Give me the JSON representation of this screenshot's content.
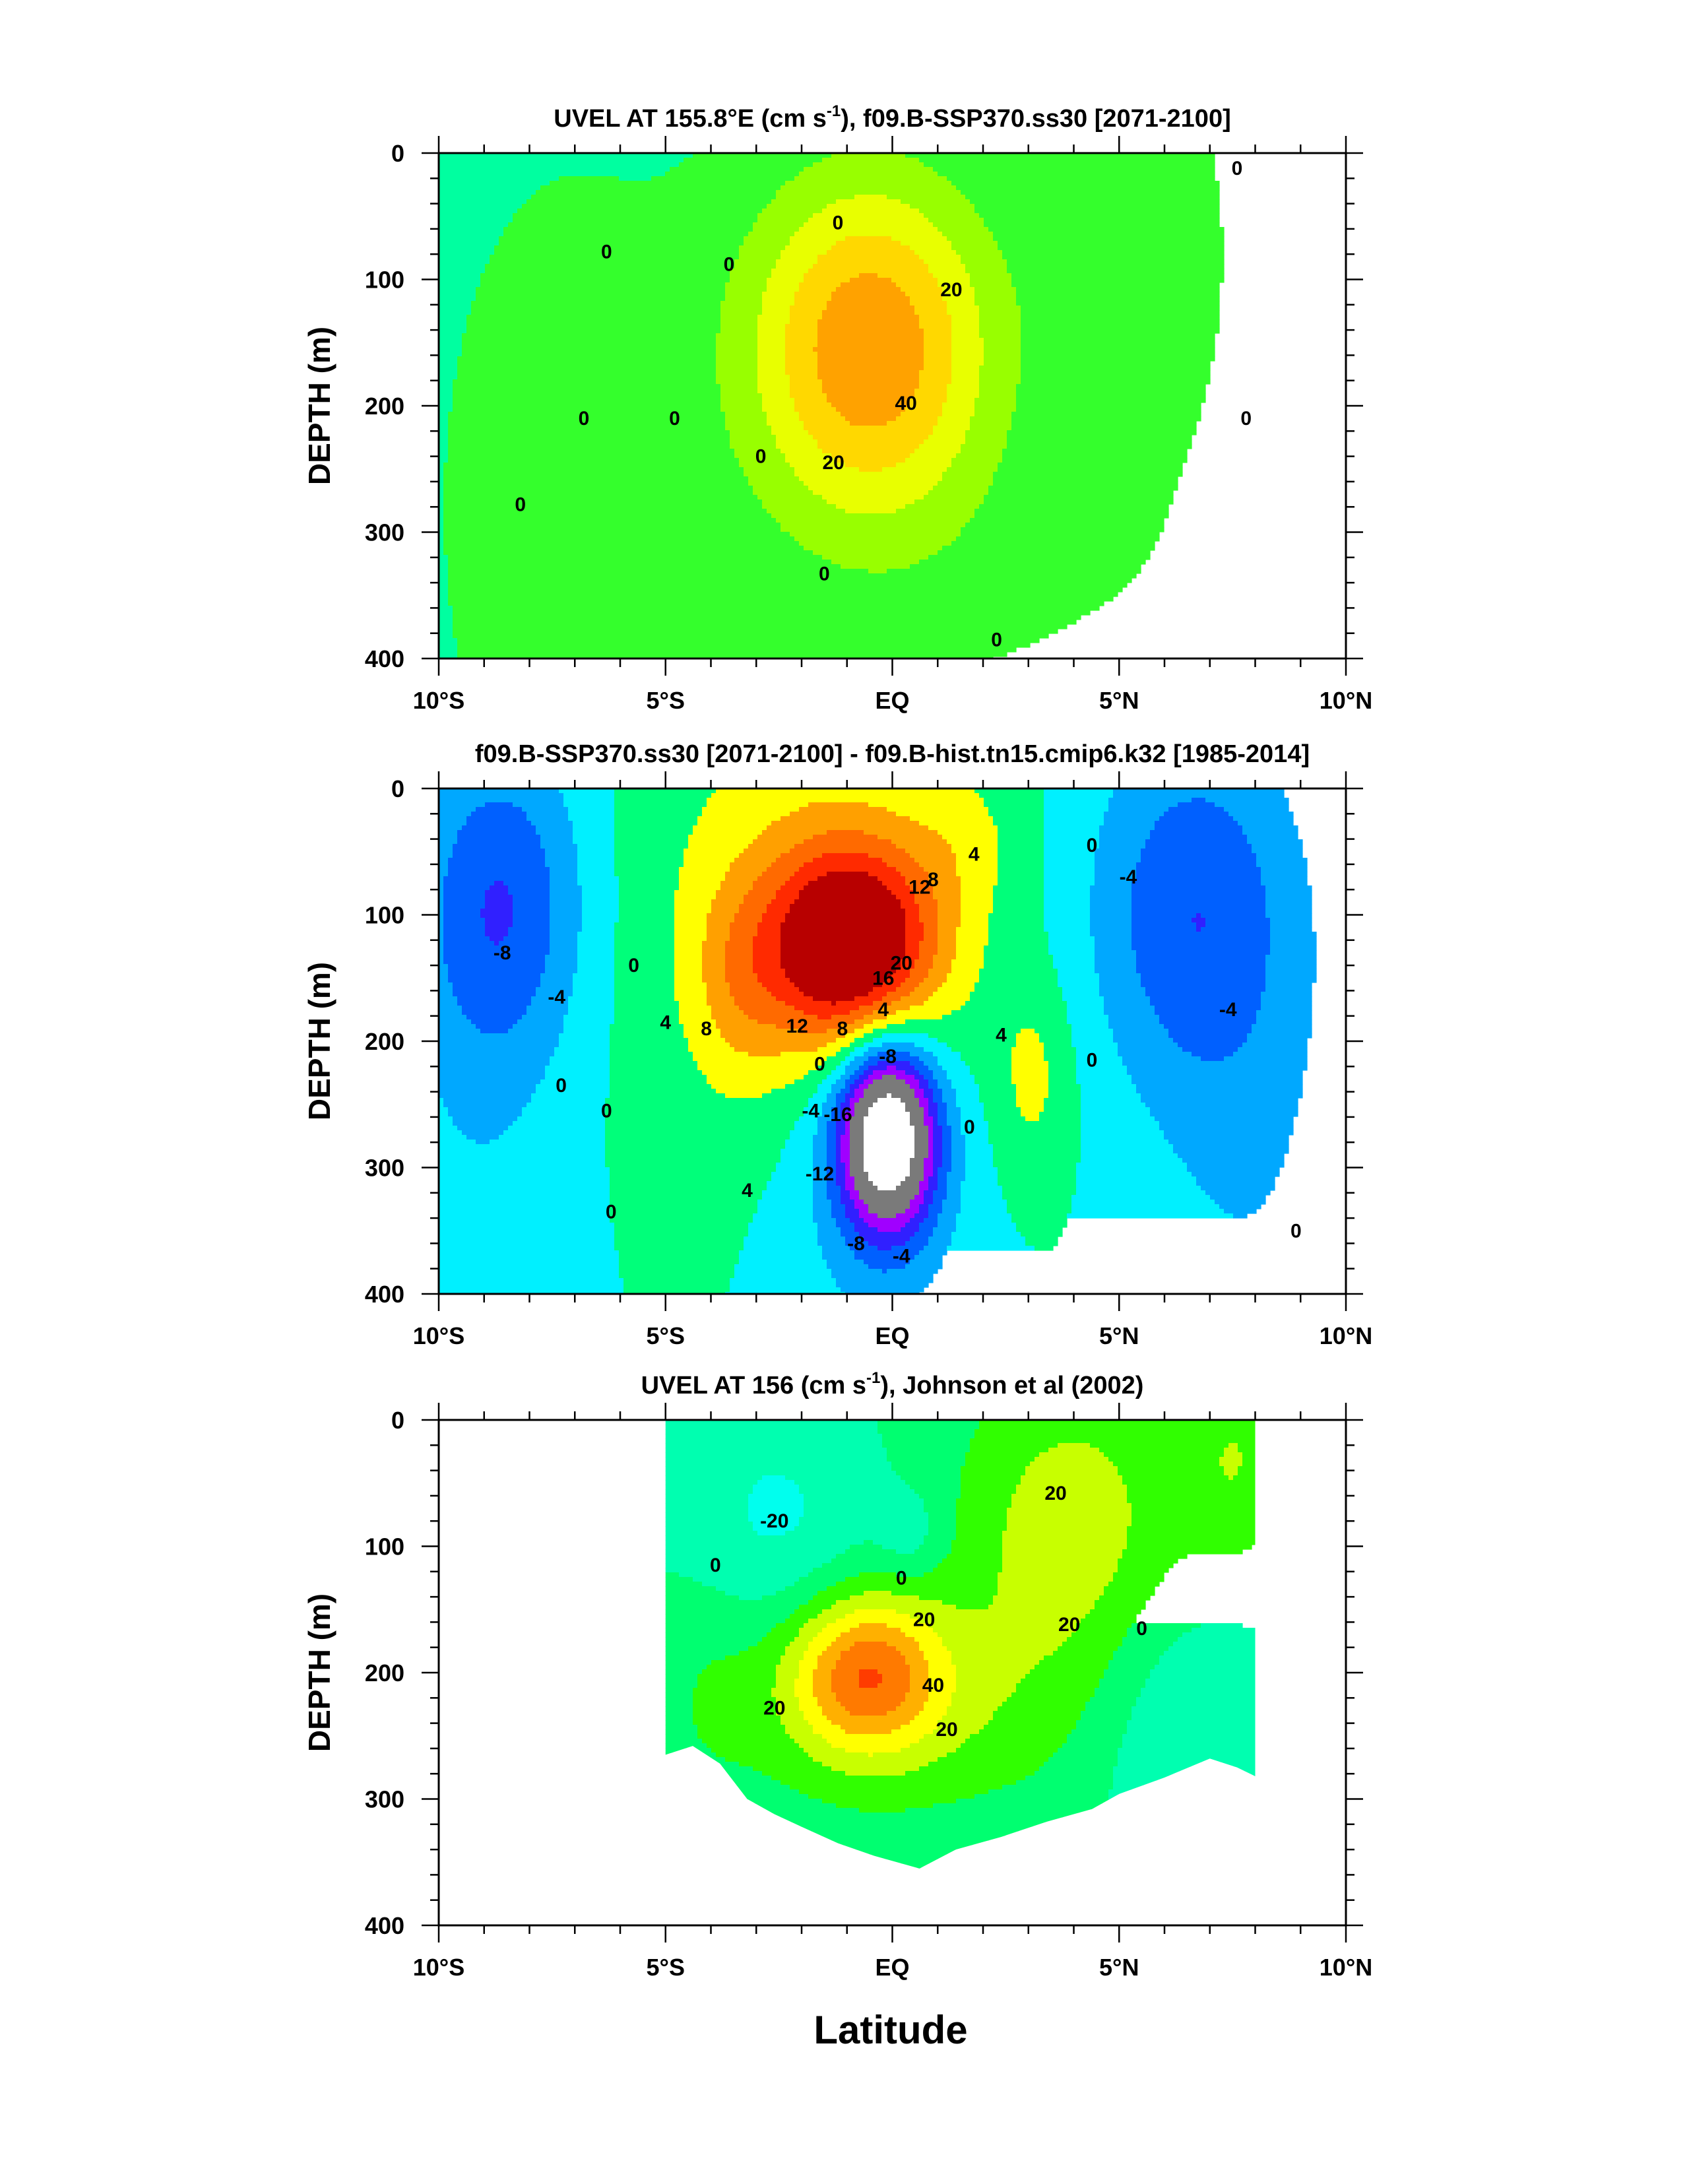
{
  "figure": {
    "xlabel": "Latitude"
  },
  "chart_data": [
    {
      "type": "heatmap",
      "title_main": "UVEL AT 155.8°E (cm s",
      "title_sup": "-1",
      "title_rest": "), f09.B-SSP370.ss30 [2071-2100]",
      "ylabel": "DEPTH (m)",
      "xlabel": "",
      "xlim": [
        -10,
        10
      ],
      "ylim": [
        400,
        0
      ],
      "xticks": [
        {
          "v": -10,
          "label": "10°S"
        },
        {
          "v": -5,
          "label": "5°S"
        },
        {
          "v": 0,
          "label": "EQ"
        },
        {
          "v": 5,
          "label": "5°N"
        },
        {
          "v": 10,
          "label": "10°N"
        }
      ],
      "yticks": [
        {
          "v": 0,
          "label": "0"
        },
        {
          "v": 100,
          "label": "100"
        },
        {
          "v": 200,
          "label": "200"
        },
        {
          "v": 300,
          "label": "300"
        },
        {
          "v": 400,
          "label": "400"
        }
      ],
      "data_xlim": [
        -10,
        10
      ],
      "background_value": -3,
      "features": [
        {
          "x": -0.5,
          "y": 155,
          "sx": 1.9,
          "sy": 95,
          "a": 52
        },
        {
          "x": 5.2,
          "y": 80,
          "sx": 1.4,
          "sy": 120,
          "a": 9
        },
        {
          "x": -7,
          "y": 280,
          "sx": 2.2,
          "sy": 200,
          "a": 7
        },
        {
          "x": 1.2,
          "y": 330,
          "sx": 3.5,
          "sy": 70,
          "a": 4
        },
        {
          "x": 9.8,
          "y": 100,
          "sx": 0.8,
          "sy": 130,
          "a": -3
        }
      ],
      "contour_labels": [
        {
          "x": -1.2,
          "y": 55,
          "t": "0"
        },
        {
          "x": -3.6,
          "y": 88,
          "t": "0"
        },
        {
          "x": -6.3,
          "y": 78,
          "t": "0"
        },
        {
          "x": -6.8,
          "y": 210,
          "t": "0"
        },
        {
          "x": -4.8,
          "y": 210,
          "t": "0"
        },
        {
          "x": -2.9,
          "y": 240,
          "t": "0"
        },
        {
          "x": -8.2,
          "y": 278,
          "t": "0"
        },
        {
          "x": -1.5,
          "y": 333,
          "t": "0"
        },
        {
          "x": 2.3,
          "y": 385,
          "t": "0"
        },
        {
          "x": 7.8,
          "y": 210,
          "t": "0"
        },
        {
          "x": 7.6,
          "y": 12,
          "t": "0"
        },
        {
          "x": 1.3,
          "y": 108,
          "t": "20"
        },
        {
          "x": -1.3,
          "y": 245,
          "t": "20"
        },
        {
          "x": 0.3,
          "y": 198,
          "t": "40"
        }
      ]
    },
    {
      "type": "heatmap",
      "title_main": "f09.B-SSP370.ss30 [2071-2100] - f09.B-hist.tn15.cmip6.k32 [1985-2014]",
      "title_sup": "",
      "title_rest": "",
      "ylabel": "DEPTH (m)",
      "xlabel": "",
      "xlim": [
        -10,
        10
      ],
      "ylim": [
        400,
        0
      ],
      "xticks": [
        {
          "v": -10,
          "label": "10°S"
        },
        {
          "v": -5,
          "label": "5°S"
        },
        {
          "v": 0,
          "label": "EQ"
        },
        {
          "v": 5,
          "label": "5°N"
        },
        {
          "v": 10,
          "label": "10°N"
        }
      ],
      "yticks": [
        {
          "v": 0,
          "label": "0"
        },
        {
          "v": 100,
          "label": "100"
        },
        {
          "v": 200,
          "label": "200"
        },
        {
          "v": 300,
          "label": "300"
        },
        {
          "v": 400,
          "label": "400"
        }
      ],
      "data_xlim": [
        -10,
        10
      ],
      "background_value": 0,
      "features": [
        {
          "x": -0.9,
          "y": 125,
          "sx": 1.3,
          "sy": 55,
          "a": 26
        },
        {
          "x": -1.8,
          "y": 100,
          "sx": 2.6,
          "sy": 130,
          "a": 7
        },
        {
          "x": -3.4,
          "y": 155,
          "sx": 0.7,
          "sy": 55,
          "a": 5
        },
        {
          "x": -0.1,
          "y": 275,
          "sx": 0.75,
          "sy": 52,
          "a": -34
        },
        {
          "x": -0.4,
          "y": 300,
          "sx": 1.5,
          "sy": 110,
          "a": -6
        },
        {
          "x": -8.6,
          "y": 90,
          "sx": 1.3,
          "sy": 90,
          "a": -11
        },
        {
          "x": -9.2,
          "y": 260,
          "sx": 1.4,
          "sy": 160,
          "a": -3
        },
        {
          "x": 6.5,
          "y": 95,
          "sx": 1.6,
          "sy": 100,
          "a": -10
        },
        {
          "x": 7.8,
          "y": 260,
          "sx": 1.6,
          "sy": 180,
          "a": -4
        },
        {
          "x": 3.1,
          "y": 230,
          "sx": 0.6,
          "sy": 55,
          "a": 5
        },
        {
          "x": 1.6,
          "y": 40,
          "sx": 0.9,
          "sy": 40,
          "a": 3
        }
      ],
      "contour_labels": [
        {
          "x": -8.6,
          "y": 130,
          "t": "-8"
        },
        {
          "x": -7.4,
          "y": 165,
          "t": "-4"
        },
        {
          "x": -7.3,
          "y": 235,
          "t": "0"
        },
        {
          "x": -6.3,
          "y": 255,
          "t": "0"
        },
        {
          "x": -6.2,
          "y": 335,
          "t": "0"
        },
        {
          "x": -5.7,
          "y": 140,
          "t": "0"
        },
        {
          "x": -5.0,
          "y": 185,
          "t": "4"
        },
        {
          "x": -4.1,
          "y": 190,
          "t": "8"
        },
        {
          "x": -3.2,
          "y": 318,
          "t": "4"
        },
        {
          "x": -2.1,
          "y": 188,
          "t": "12"
        },
        {
          "x": -1.1,
          "y": 190,
          "t": "8"
        },
        {
          "x": -0.2,
          "y": 175,
          "t": "4"
        },
        {
          "x": -0.2,
          "y": 150,
          "t": "16"
        },
        {
          "x": 0.2,
          "y": 138,
          "t": "20"
        },
        {
          "x": 0.6,
          "y": 78,
          "t": "12"
        },
        {
          "x": 0.9,
          "y": 72,
          "t": "8"
        },
        {
          "x": 1.8,
          "y": 52,
          "t": "4"
        },
        {
          "x": 2.4,
          "y": 195,
          "t": "4"
        },
        {
          "x": 1.7,
          "y": 268,
          "t": "0"
        },
        {
          "x": -0.1,
          "y": 212,
          "t": "-8"
        },
        {
          "x": -1.6,
          "y": 218,
          "t": "0"
        },
        {
          "x": -1.8,
          "y": 255,
          "t": "-4"
        },
        {
          "x": -1.2,
          "y": 258,
          "t": "-16"
        },
        {
          "x": -1.6,
          "y": 305,
          "t": "-12"
        },
        {
          "x": -0.8,
          "y": 360,
          "t": "-8"
        },
        {
          "x": 0.2,
          "y": 370,
          "t": "-4"
        },
        {
          "x": 4.4,
          "y": 45,
          "t": "0"
        },
        {
          "x": 5.2,
          "y": 70,
          "t": "-4"
        },
        {
          "x": 7.4,
          "y": 175,
          "t": "-4"
        },
        {
          "x": 4.4,
          "y": 215,
          "t": "0"
        },
        {
          "x": 8.9,
          "y": 350,
          "t": "0"
        }
      ]
    },
    {
      "type": "heatmap",
      "title_main": "UVEL AT 156 (cm s",
      "title_sup": "-1",
      "title_rest": "), Johnson et al (2002)",
      "ylabel": "DEPTH (m)",
      "xlabel": "",
      "xlim": [
        -10,
        10
      ],
      "ylim": [
        400,
        0
      ],
      "xticks": [
        {
          "v": -10,
          "label": "10°S"
        },
        {
          "v": -5,
          "label": "5°S"
        },
        {
          "v": 0,
          "label": "EQ"
        },
        {
          "v": 5,
          "label": "5°N"
        },
        {
          "v": 10,
          "label": "10°N"
        }
      ],
      "yticks": [
        {
          "v": 0,
          "label": "0"
        },
        {
          "v": 100,
          "label": "100"
        },
        {
          "v": 200,
          "label": "200"
        },
        {
          "v": 300,
          "label": "300"
        },
        {
          "v": 400,
          "label": "400"
        }
      ],
      "data_xlim": [
        -5,
        8
      ],
      "data_bottom": [
        [
          -5.0,
          265
        ],
        [
          -4.4,
          258
        ],
        [
          -3.8,
          272
        ],
        [
          -3.2,
          300
        ],
        [
          -2.6,
          312
        ],
        [
          -2.0,
          322
        ],
        [
          -1.2,
          335
        ],
        [
          -0.4,
          345
        ],
        [
          0.6,
          355
        ],
        [
          1.4,
          340
        ],
        [
          2.4,
          330
        ],
        [
          3.4,
          318
        ],
        [
          4.4,
          308
        ],
        [
          5.0,
          296
        ],
        [
          6.0,
          283
        ],
        [
          7.0,
          268
        ],
        [
          7.6,
          275
        ],
        [
          8.0,
          282
        ]
      ],
      "background_value": -8,
      "features": [
        {
          "x": -0.6,
          "y": 200,
          "sx": 1.2,
          "sy": 45,
          "a": 48
        },
        {
          "x": 0.5,
          "y": 230,
          "sx": 3.0,
          "sy": 60,
          "a": 14
        },
        {
          "x": 4.0,
          "y": 90,
          "sx": 1.8,
          "sy": 90,
          "a": 25
        },
        {
          "x": 7.6,
          "y": 30,
          "sx": 0.8,
          "sy": 60,
          "a": 16
        },
        {
          "x": -2.6,
          "y": 80,
          "sx": 1.6,
          "sy": 70,
          "a": -14
        },
        {
          "x": 0.4,
          "y": 90,
          "sx": 0.5,
          "sy": 25,
          "a": -10
        },
        {
          "x": 6.2,
          "y": 230,
          "sx": 1.5,
          "sy": 80,
          "a": -14
        },
        {
          "x": -4.0,
          "y": 200,
          "sx": 0.8,
          "sy": 70,
          "a": 6
        }
      ],
      "contour_labels": [
        {
          "x": -2.6,
          "y": 80,
          "t": "-20"
        },
        {
          "x": -3.9,
          "y": 115,
          "t": "0"
        },
        {
          "x": 0.2,
          "y": 125,
          "t": "0"
        },
        {
          "x": 3.6,
          "y": 58,
          "t": "20"
        },
        {
          "x": 0.7,
          "y": 158,
          "t": "20"
        },
        {
          "x": 3.9,
          "y": 162,
          "t": "20"
        },
        {
          "x": 5.5,
          "y": 165,
          "t": "0"
        },
        {
          "x": -2.6,
          "y": 228,
          "t": "20"
        },
        {
          "x": 0.9,
          "y": 210,
          "t": "40"
        },
        {
          "x": 1.2,
          "y": 245,
          "t": "20"
        }
      ]
    }
  ]
}
